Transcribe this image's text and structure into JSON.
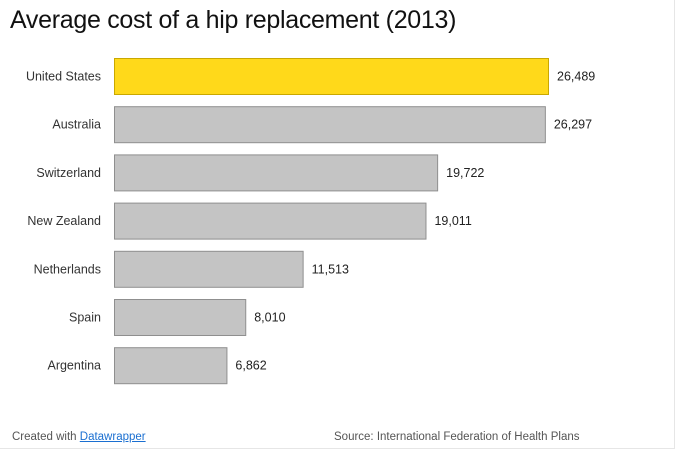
{
  "chart_data": {
    "type": "bar",
    "orientation": "horizontal",
    "title": "Average cost of a hip replacement (2013)",
    "categories": [
      "United States",
      "Australia",
      "Switzerland",
      "New Zealand",
      "Netherlands",
      "Spain",
      "Argentina"
    ],
    "values": [
      26489,
      26297,
      19722,
      19011,
      11513,
      8010,
      6862
    ],
    "value_labels": [
      "26,489",
      "26,297",
      "19,722",
      "19,011",
      "11,513",
      "8,010",
      "6,862"
    ],
    "highlight_category": "United States",
    "colors": {
      "highlight": "#ffd91a",
      "highlight_border": "#c9a800",
      "bar": "#c4c4c4",
      "bar_border": "#8f8f8f"
    },
    "grid": false,
    "legend": "none"
  },
  "footer": {
    "created_prefix": "Created with",
    "created_link": "Datawrapper",
    "source": "Source: International Federation of Health Plans"
  }
}
